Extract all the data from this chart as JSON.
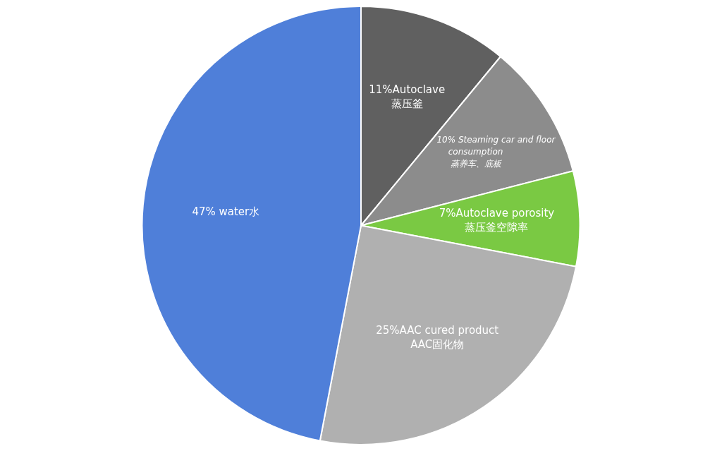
{
  "chart_data": {
    "type": "pie",
    "categories": [
      "11%Autoclave\n蒸压釜",
      "10% Steaming car and floor\nconsumption\n蒸养车、底板",
      "7%Autoclave porosity\n蒸压釜空隙率",
      "25%AAC cured product\nAAC固化物",
      "47% water水"
    ],
    "values": [
      11,
      10,
      7,
      25,
      47
    ],
    "colors": [
      "#606060",
      "#8c8c8c",
      "#7ac943",
      "#b0b0b0",
      "#4f7fd9"
    ],
    "legend": false
  }
}
